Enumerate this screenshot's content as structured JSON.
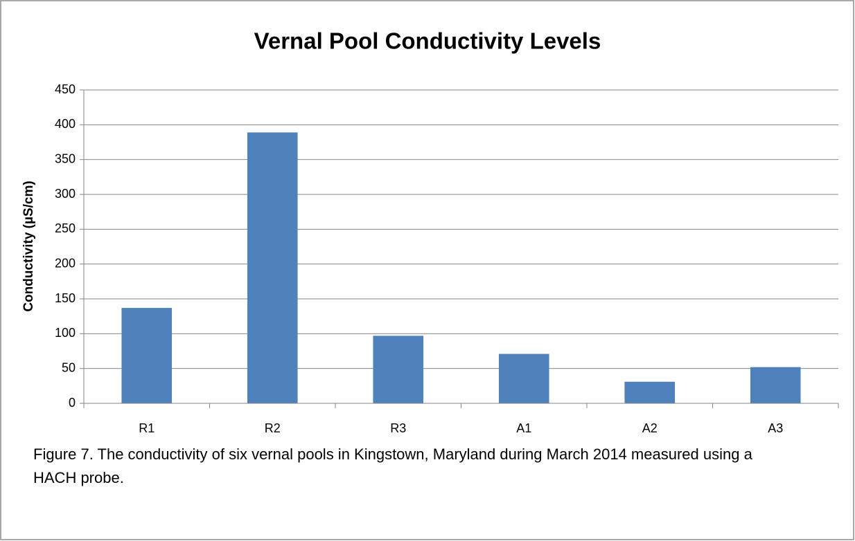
{
  "chart_data": {
    "type": "bar",
    "title": "Vernal Pool Conductivity Levels",
    "y_label": "Conductivity (µS/cm)",
    "categories": [
      "R1",
      "R2",
      "R3",
      "A1",
      "A2",
      "A3"
    ],
    "values": [
      137,
      389,
      97,
      71,
      31,
      52
    ],
    "color": "#4f81bd",
    "ylim": [
      0,
      450
    ],
    "yticks": [
      0,
      50,
      100,
      150,
      200,
      250,
      300,
      350,
      400,
      450
    ],
    "grid": true,
    "caption": "Figure 7. The conductivity of six vernal pools in Kingstown, Maryland during March 2014 measured using a HACH probe."
  }
}
